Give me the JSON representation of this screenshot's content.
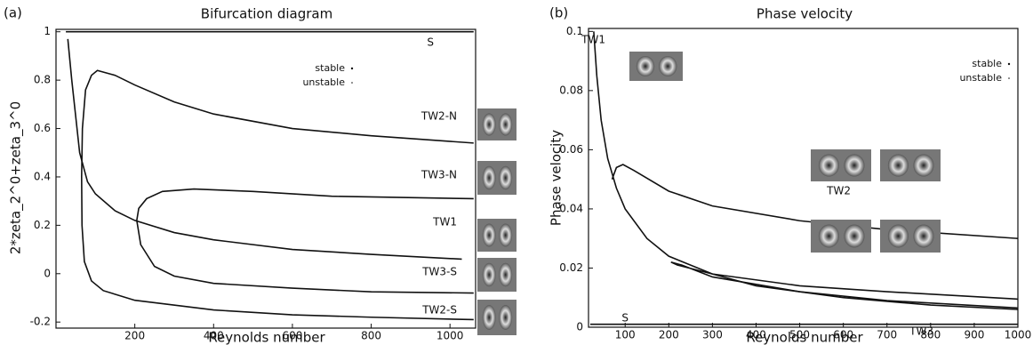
{
  "chart_data": [
    {
      "type": "line",
      "panel_label": "(a)",
      "title": "Bifurcation diagram",
      "xlabel": "Reynolds number",
      "ylabel": "2*zeta_2^0+zeta_3^0",
      "xlim": [
        0,
        1065
      ],
      "ylim": [
        -0.225,
        1.01
      ],
      "xticks": [
        200,
        400,
        600,
        800,
        1000
      ],
      "yticks": [
        -0.2,
        0,
        0.2,
        0.4,
        0.6,
        0.8,
        1
      ],
      "legend": [
        "stable",
        "unstable"
      ],
      "annotations": [
        "S",
        "TW2-N",
        "TW3-N",
        "TW1",
        "TW3-S",
        "TW2-S"
      ],
      "color": "#111111",
      "series": [
        {
          "x": [
            25,
            1060
          ],
          "values": [
            1,
            1
          ]
        },
        {
          "x": [
            30,
            40,
            50,
            60,
            80,
            100,
            150,
            200,
            300,
            400,
            600,
            800,
            1030
          ],
          "values": [
            0.97,
            0.8,
            0.65,
            0.5,
            0.38,
            0.33,
            0.26,
            0.22,
            0.17,
            0.14,
            0.1,
            0.08,
            0.06
          ]
        },
        {
          "x": [
            1060,
            800,
            600,
            400,
            200,
            120,
            90,
            72,
            66,
            65,
            67,
            75,
            90,
            105,
            150,
            200,
            300,
            400,
            600,
            800,
            1060
          ],
          "values": [
            -0.19,
            -0.18,
            -0.17,
            -0.15,
            -0.11,
            -0.07,
            -0.03,
            0.05,
            0.2,
            0.4,
            0.6,
            0.76,
            0.82,
            0.84,
            0.82,
            0.78,
            0.71,
            0.66,
            0.6,
            0.57,
            0.54
          ]
        },
        {
          "x": [
            1060,
            800,
            600,
            400,
            300,
            250,
            215,
            205,
            210,
            230,
            270,
            350,
            500,
            700,
            1060
          ],
          "values": [
            -0.08,
            -0.075,
            -0.06,
            -0.04,
            -0.01,
            0.03,
            0.12,
            0.22,
            0.27,
            0.31,
            0.34,
            0.35,
            0.34,
            0.32,
            0.31
          ]
        }
      ]
    },
    {
      "type": "line",
      "panel_label": "(b)",
      "title": "Phase velocity",
      "xlabel": "Reynolds number",
      "ylabel": "Phase velocity",
      "xlim": [
        16,
        1000
      ],
      "ylim": [
        0,
        0.101
      ],
      "xticks": [
        100,
        200,
        300,
        400,
        500,
        600,
        700,
        800,
        900,
        1000
      ],
      "yticks": [
        0,
        0.02,
        0.04,
        0.06,
        0.08,
        0.1
      ],
      "legend": [
        "stable",
        "unstable"
      ],
      "annotations": [
        "TW1",
        "TW2",
        "TW3",
        "S"
      ],
      "color": "#111111",
      "series": [
        {
          "x": [
            20,
            1000
          ],
          "values": [
            0.001,
            0.001
          ]
        },
        {
          "x": [
            28,
            35,
            45,
            60,
            80,
            100,
            150,
            200,
            300,
            400,
            600,
            800,
            1000
          ],
          "values": [
            0.1,
            0.085,
            0.07,
            0.057,
            0.047,
            0.04,
            0.03,
            0.024,
            0.018,
            0.014,
            0.01,
            0.0075,
            0.006
          ]
        },
        {
          "x": [
            70,
            80,
            95,
            120,
            200,
            300,
            500,
            700,
            1000
          ],
          "values": [
            0.05,
            0.054,
            0.055,
            0.053,
            0.046,
            0.041,
            0.036,
            0.033,
            0.03
          ]
        },
        {
          "x": [
            1000,
            700,
            500,
            300,
            230,
            205,
            220,
            300,
            500,
            700,
            1000
          ],
          "values": [
            0.0065,
            0.009,
            0.012,
            0.017,
            0.021,
            0.022,
            0.021,
            0.018,
            0.014,
            0.012,
            0.0095
          ]
        }
      ]
    }
  ]
}
